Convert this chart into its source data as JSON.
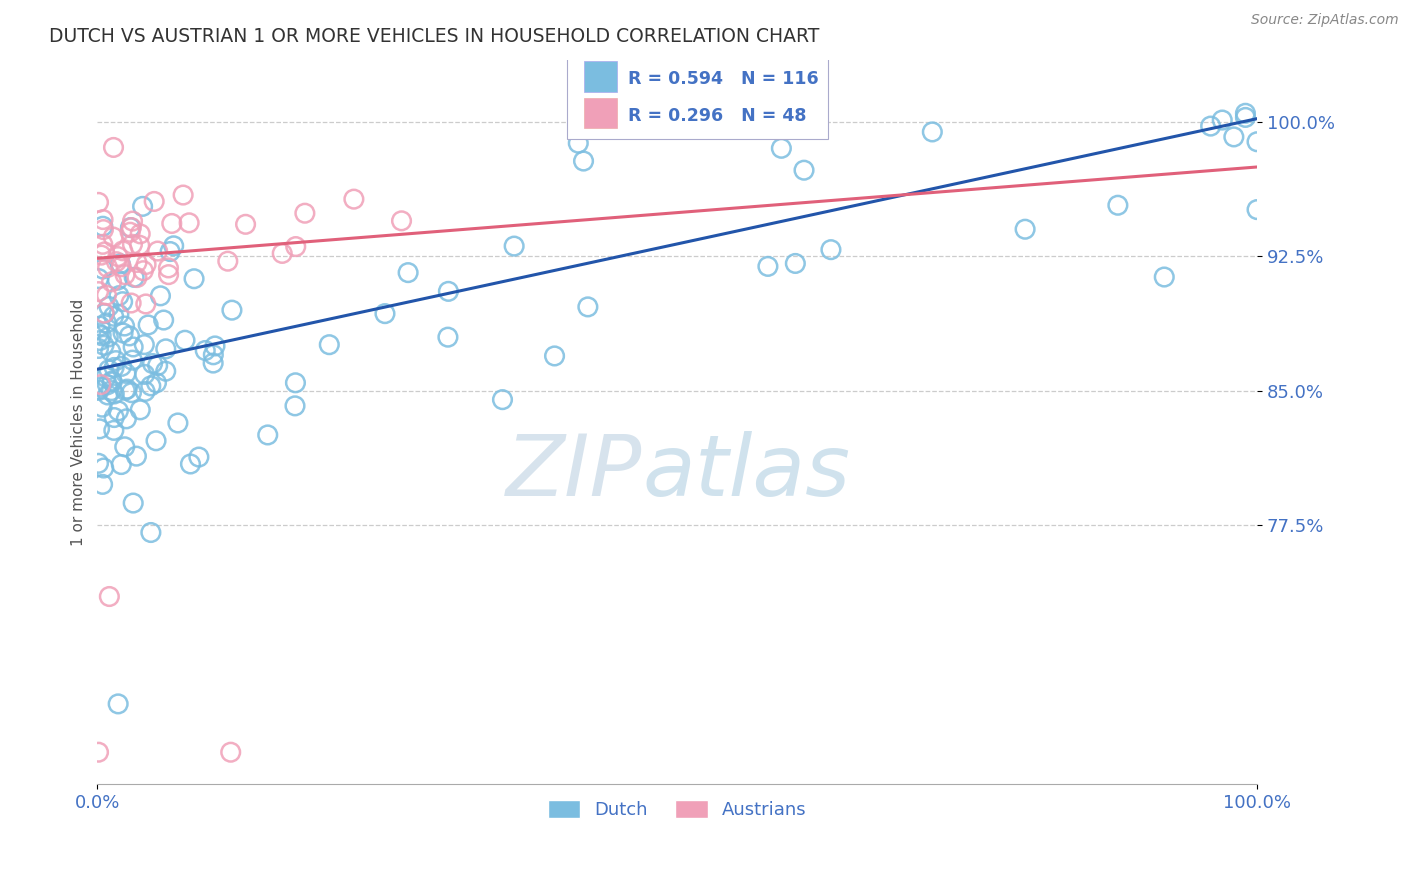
{
  "title": "DUTCH VS AUSTRIAN 1 OR MORE VEHICLES IN HOUSEHOLD CORRELATION CHART",
  "source": "Source: ZipAtlas.com",
  "ylabel": "1 or more Vehicles in Household",
  "watermark_zip": "ZIP",
  "watermark_atlas": "atlas",
  "xlim": [
    0.0,
    1.0
  ],
  "ylim": [
    0.63,
    1.035
  ],
  "yticks": [
    0.775,
    0.85,
    0.925,
    1.0
  ],
  "ytick_labels": [
    "77.5%",
    "85.0%",
    "92.5%",
    "100.0%"
  ],
  "xtick_labels": [
    "0.0%",
    "100.0%"
  ],
  "dutch_R": 0.594,
  "dutch_N": 116,
  "austrian_R": 0.296,
  "austrian_N": 48,
  "dutch_color": "#7bbde0",
  "austrian_color": "#f0a0b8",
  "dutch_line_color": "#2255aa",
  "austrian_line_color": "#e0607a",
  "tick_label_color": "#4472c4",
  "axis_label_color": "#555555",
  "title_color": "#333333",
  "source_color": "#888888",
  "grid_color": "#cccccc",
  "background_color": "#ffffff",
  "dutch_trend_x0": 0.0,
  "dutch_trend_y0": 0.862,
  "dutch_trend_x1": 1.0,
  "dutch_trend_y1": 1.002,
  "austrian_trend_x0": 0.0,
  "austrian_trend_y0": 0.924,
  "austrian_trend_x1": 1.0,
  "austrian_trend_y1": 0.975
}
